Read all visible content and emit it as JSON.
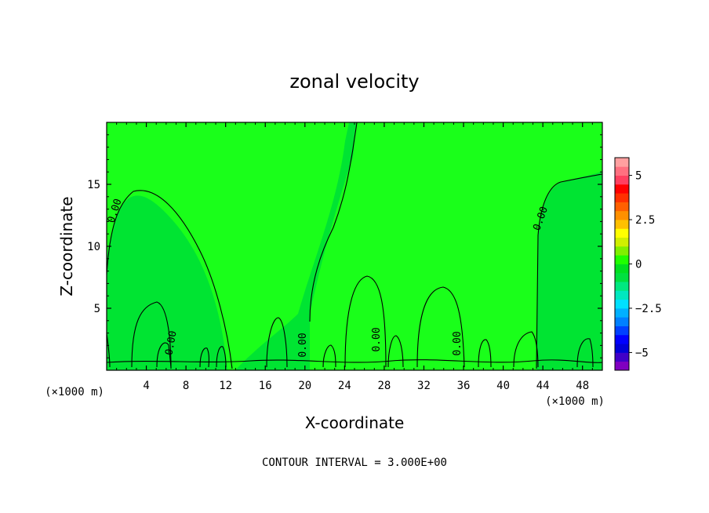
{
  "chart_data": {
    "type": "heatmap",
    "title": "zonal velocity",
    "xlabel": "X-coordinate",
    "ylabel": "Z-coordinate",
    "x_unit": "(×1000 m)",
    "y_unit": "(×1000 m)",
    "xlim": [
      0,
      50
    ],
    "ylim": [
      0,
      20
    ],
    "x_ticks": [
      4,
      8,
      12,
      16,
      20,
      24,
      28,
      32,
      36,
      40,
      44,
      48
    ],
    "y_ticks": [
      5,
      10,
      15
    ],
    "contour_interval_text": "CONTOUR INTERVAL = 3.000E+00",
    "contour_labels": [
      "0.00",
      "0.00",
      "0.00",
      "0.00",
      "0.00",
      "0.00"
    ],
    "colorbar": {
      "tick_labels": [
        "5",
        "2.5",
        "0",
        "−2.5",
        "−5"
      ],
      "tick_values": [
        5,
        2.5,
        0,
        -2.5,
        -5
      ],
      "range": [
        -6,
        6
      ],
      "colors": [
        "#8000c0",
        "#4000c8",
        "#0000d8",
        "#0000ff",
        "#0040ff",
        "#0080ff",
        "#00b0ff",
        "#00e0ff",
        "#00e8c0",
        "#00e880",
        "#00e040",
        "#00e020",
        "#20ff00",
        "#80f000",
        "#d0f000",
        "#ffff00",
        "#ffc000",
        "#ff9000",
        "#ff6000",
        "#ff3000",
        "#ff0000",
        "#ff4060",
        "#ff7080",
        "#ffa0a0"
      ]
    },
    "field_colors": {
      "positive": "#1aff1a",
      "negative": "#00e432"
    }
  }
}
